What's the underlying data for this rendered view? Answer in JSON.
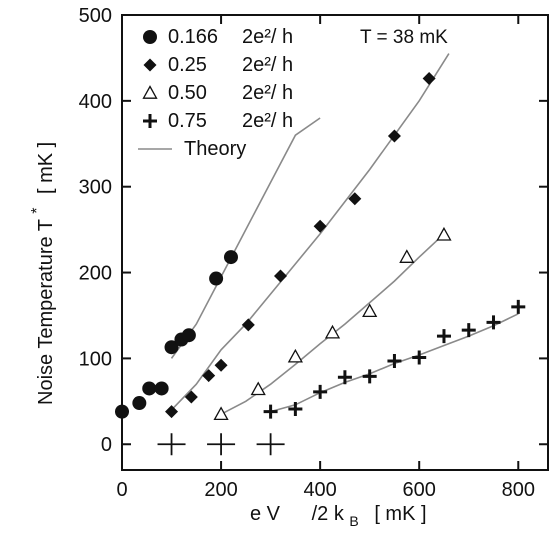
{
  "chart_data": {
    "type": "scatter",
    "title": "",
    "xlabel": "eV /2k_B [ mK ]",
    "xlabel_parts": {
      "main": "e V",
      "k": "/2 k",
      "sub": "B",
      "unit": "[  mK ]"
    },
    "ylabel": "Noise Temperature T* [ mK ]",
    "ylabel_parts": {
      "main": "Noise Temperature T",
      "sup": "*",
      "unit": "[ mK ]"
    },
    "xlim": [
      0,
      860
    ],
    "ylim": [
      -30,
      500
    ],
    "xticks": [
      0,
      200,
      400,
      600,
      800
    ],
    "yticks": [
      0,
      100,
      200,
      300,
      400,
      500
    ],
    "grid": false,
    "legend_position": "top-left",
    "annotation": "T = 38 mK",
    "series": [
      {
        "name": "0.166 2e²/ h",
        "name_value": "0.166",
        "name_unit": "2e²/ h",
        "marker": "circle",
        "points": [
          [
            0,
            38
          ],
          [
            35,
            48
          ],
          [
            55,
            65
          ],
          [
            80,
            65
          ],
          [
            100,
            113
          ],
          [
            120,
            122
          ],
          [
            135,
            127
          ],
          [
            190,
            193
          ],
          [
            220,
            218
          ]
        ]
      },
      {
        "name": "0.25 2e²/ h",
        "name_value": "0.25",
        "name_unit": "2e²/ h",
        "marker": "diamond",
        "points": [
          [
            100,
            38
          ],
          [
            140,
            55
          ],
          [
            175,
            80
          ],
          [
            200,
            92
          ],
          [
            255,
            139
          ],
          [
            320,
            196
          ],
          [
            400,
            254
          ],
          [
            470,
            286
          ],
          [
            550,
            359
          ],
          [
            620,
            426
          ]
        ]
      },
      {
        "name": "0.50 2e²/ h",
        "name_value": "0.50",
        "name_unit": "2e²/ h",
        "marker": "triangle-open",
        "points": [
          [
            200,
            35
          ],
          [
            275,
            64
          ],
          [
            350,
            102
          ],
          [
            425,
            130
          ],
          [
            500,
            155
          ],
          [
            575,
            218
          ],
          [
            650,
            244
          ]
        ]
      },
      {
        "name": "0.75 2e²/ h",
        "name_value": "0.75",
        "name_unit": "2e²/ h",
        "marker": "plus",
        "points": [
          [
            300,
            38
          ],
          [
            350,
            41
          ],
          [
            400,
            61
          ],
          [
            450,
            78
          ],
          [
            500,
            79
          ],
          [
            550,
            97
          ],
          [
            600,
            101
          ],
          [
            650,
            126
          ],
          [
            700,
            133
          ],
          [
            750,
            142
          ],
          [
            800,
            160
          ]
        ]
      }
    ],
    "theory": {
      "name": "Theory",
      "curves": [
        [
          [
            100,
            100
          ],
          [
            150,
            140
          ],
          [
            200,
            195
          ],
          [
            250,
            250
          ],
          [
            300,
            305
          ],
          [
            350,
            360
          ],
          [
            400,
            380
          ]
        ],
        [
          [
            100,
            40
          ],
          [
            150,
            70
          ],
          [
            200,
            110
          ],
          [
            250,
            140
          ],
          [
            300,
            175
          ],
          [
            400,
            245
          ],
          [
            500,
            320
          ],
          [
            600,
            400
          ],
          [
            660,
            455
          ]
        ],
        [
          [
            200,
            35
          ],
          [
            250,
            50
          ],
          [
            300,
            70
          ],
          [
            350,
            93
          ],
          [
            400,
            117
          ],
          [
            450,
            140
          ],
          [
            500,
            165
          ],
          [
            550,
            190
          ],
          [
            600,
            218
          ],
          [
            650,
            245
          ]
        ],
        [
          [
            300,
            38
          ],
          [
            350,
            46
          ],
          [
            400,
            60
          ],
          [
            450,
            72
          ],
          [
            500,
            82
          ],
          [
            550,
            94
          ],
          [
            600,
            104
          ],
          [
            650,
            115
          ],
          [
            700,
            126
          ],
          [
            750,
            138
          ],
          [
            800,
            152
          ]
        ]
      ],
      "color": "#8a8a8a"
    },
    "cross_markers_x": [
      100,
      200,
      300
    ],
    "colors": {
      "ink": "#111111",
      "theory": "#8a8a8a"
    }
  }
}
